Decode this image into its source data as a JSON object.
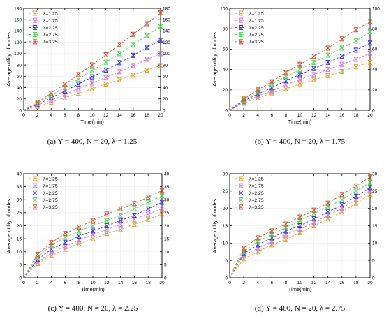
{
  "legend_labels": [
    "λ=1.25",
    "λ=1.75",
    "λ=2.25",
    "λ=2.75",
    "λ=3.25"
  ],
  "colors": [
    "#e3a03c",
    "#d67bd6",
    "#3c3cd6",
    "#5ad65a",
    "#d65a3c"
  ],
  "chart_data": [
    {
      "type": "line",
      "title": "",
      "caption": "(a)  Υ = 400, N = 20, λ = 1.25",
      "xlabel": "Time(min)",
      "ylabel": "Average utility of nodes",
      "xlim": [
        0,
        20
      ],
      "ylim": [
        0,
        180
      ],
      "xticks": [
        0,
        2,
        4,
        6,
        8,
        10,
        12,
        14,
        16,
        18,
        20
      ],
      "yticks": [
        0,
        20,
        40,
        60,
        80,
        100,
        120,
        140,
        160,
        180
      ],
      "legend_position": "top-left",
      "grid": true,
      "x": [
        0,
        2,
        4,
        6,
        8,
        10,
        12,
        14,
        16,
        18,
        20
      ],
      "series": [
        {
          "name": "λ=1.25",
          "values": [
            0,
            7,
            14,
            22,
            30,
            38,
            46,
            54,
            62,
            71,
            79
          ]
        },
        {
          "name": "λ=1.75",
          "values": [
            0,
            9,
            18,
            28,
            38,
            48,
            58,
            68,
            79,
            90,
            100
          ]
        },
        {
          "name": "λ=2.25",
          "values": [
            0,
            10,
            22,
            34,
            46,
            59,
            71,
            84,
            97,
            111,
            124
          ]
        },
        {
          "name": "λ=2.75",
          "values": [
            0,
            12,
            26,
            40,
            55,
            70,
            85,
            100,
            116,
            132,
            148
          ]
        },
        {
          "name": "λ=3.25",
          "values": [
            0,
            14,
            30,
            46,
            63,
            80,
            98,
            116,
            134,
            153,
            172
          ]
        }
      ]
    },
    {
      "type": "line",
      "title": "",
      "caption": "(b)  Υ = 400, N = 20, λ = 1.75",
      "xlabel": "Time(min)",
      "ylabel": "Average utility of nodes",
      "xlim": [
        0,
        20
      ],
      "ylim": [
        0,
        100
      ],
      "xticks": [
        0,
        2,
        4,
        6,
        8,
        10,
        12,
        14,
        16,
        18,
        20
      ],
      "yticks": [
        0,
        20,
        40,
        60,
        80,
        100
      ],
      "legend_position": "top-left",
      "grid": true,
      "x": [
        0,
        2,
        4,
        6,
        8,
        10,
        12,
        14,
        16,
        18,
        20
      ],
      "series": [
        {
          "name": "λ=1.25",
          "values": [
            0,
            7,
            12,
            17,
            21,
            26,
            30,
            34,
            38,
            43,
            47
          ]
        },
        {
          "name": "λ=1.75",
          "values": [
            0,
            8,
            14,
            19,
            25,
            30,
            35,
            40,
            45,
            50,
            56
          ]
        },
        {
          "name": "λ=2.25",
          "values": [
            0,
            9,
            16,
            22,
            29,
            35,
            41,
            47,
            53,
            59,
            66
          ]
        },
        {
          "name": "λ=2.75",
          "values": [
            0,
            10,
            18,
            26,
            33,
            40,
            47,
            54,
            61,
            68,
            77
          ]
        },
        {
          "name": "λ=3.25",
          "values": [
            0,
            11,
            20,
            28,
            37,
            45,
            53,
            61,
            70,
            79,
            87
          ]
        }
      ]
    },
    {
      "type": "line",
      "title": "",
      "caption": "(c)  Υ = 400, N = 20, λ = 2.25",
      "xlabel": "Time(min)",
      "ylabel": "Average utility of nodes",
      "xlim": [
        0,
        20
      ],
      "ylim": [
        0,
        40
      ],
      "xticks": [
        0,
        2,
        4,
        6,
        8,
        10,
        12,
        14,
        16,
        18,
        20
      ],
      "yticks": [
        0,
        5,
        10,
        15,
        20,
        25,
        30,
        35,
        40
      ],
      "legend_position": "top-left",
      "grid": true,
      "x": [
        0,
        2,
        4,
        6,
        8,
        10,
        12,
        14,
        16,
        18,
        20
      ],
      "series": [
        {
          "name": "λ=1.25",
          "values": [
            0,
            5.5,
            8.5,
            11,
            13,
            15,
            17,
            18.5,
            20.5,
            22.5,
            24.5
          ]
        },
        {
          "name": "λ=1.75",
          "values": [
            0,
            6,
            9.5,
            12,
            14.5,
            16.5,
            18.5,
            20.5,
            22.5,
            24.5,
            26.5
          ]
        },
        {
          "name": "λ=2.25",
          "values": [
            0,
            7,
            11,
            13.5,
            16,
            18,
            20,
            22,
            24,
            26.5,
            29
          ]
        },
        {
          "name": "λ=2.75",
          "values": [
            0,
            8,
            12.5,
            15.5,
            18,
            20,
            22,
            24,
            26.5,
            29,
            31.5
          ]
        },
        {
          "name": "λ=3.25",
          "values": [
            0,
            9,
            13.5,
            17,
            19.5,
            22,
            24.5,
            26.5,
            28.5,
            31,
            33.5
          ]
        }
      ]
    },
    {
      "type": "line",
      "title": "",
      "caption": "(d)  Υ = 400, N = 20, λ = 2.75",
      "xlabel": "Time(min)",
      "ylabel": "Average utility of nodes",
      "xlim": [
        0,
        20
      ],
      "ylim": [
        0,
        30
      ],
      "xticks": [
        0,
        2,
        4,
        6,
        8,
        10,
        12,
        14,
        16,
        18,
        20
      ],
      "yticks": [
        0,
        5,
        10,
        15,
        20,
        25,
        30
      ],
      "legend_position": "top-left",
      "grid": true,
      "x": [
        0,
        2,
        4,
        6,
        8,
        10,
        12,
        14,
        16,
        18,
        20
      ],
      "series": [
        {
          "name": "λ=1.25",
          "values": [
            0,
            5.5,
            7.5,
            9.5,
            11,
            13,
            15,
            17,
            19,
            21.5,
            24
          ]
        },
        {
          "name": "λ=1.75",
          "values": [
            0,
            6.5,
            8.5,
            10.5,
            12.5,
            14,
            16,
            18,
            20,
            22.5,
            25
          ]
        },
        {
          "name": "λ=2.25",
          "values": [
            0,
            7,
            9.5,
            11.5,
            13.5,
            15,
            17,
            19,
            21,
            23.5,
            26
          ]
        },
        {
          "name": "λ=2.75",
          "values": [
            0,
            7.5,
            10.5,
            12.5,
            14.5,
            16.5,
            18.5,
            20.5,
            22.5,
            25,
            27.5
          ]
        },
        {
          "name": "λ=3.25",
          "values": [
            0,
            8.5,
            11.5,
            13.5,
            15.5,
            17.5,
            19.5,
            21.5,
            24,
            26.5,
            29
          ]
        }
      ]
    }
  ]
}
